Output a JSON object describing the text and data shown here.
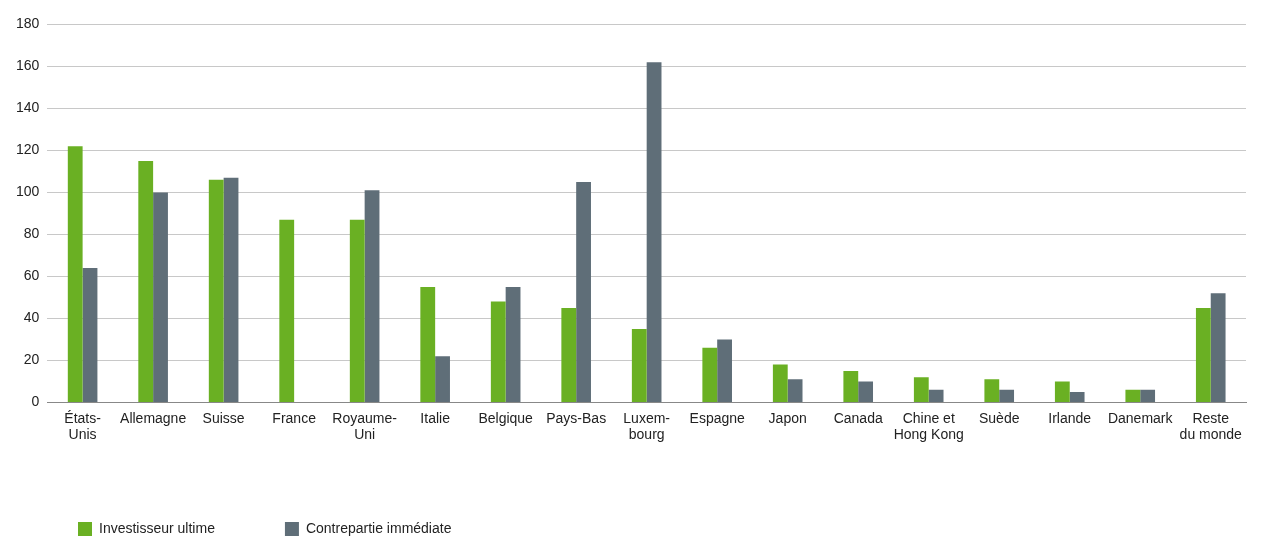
{
  "chart_data": {
    "type": "bar",
    "categories": [
      "États-\nUnis",
      "Allemagne",
      "Suisse",
      "France",
      "Royaume-\nUni",
      "Italie",
      "Belgique",
      "Pays-Bas",
      "Luxem-\nbourg",
      "Espagne",
      "Japon",
      "Canada",
      "Chine et\nHong Kong",
      "Suède",
      "Irlande",
      "Danemark",
      "Reste\ndu monde"
    ],
    "series": [
      {
        "name": "Investisseur ultime",
        "color": "#6ab023",
        "values": [
          122,
          115,
          106,
          87,
          87,
          55,
          48,
          45,
          35,
          26,
          18,
          15,
          12,
          11,
          10,
          6,
          45
        ]
      },
      {
        "name": "Contrepartie immédiate",
        "color": "#5f6e78",
        "values": [
          64,
          100,
          107,
          null,
          101,
          22,
          55,
          105,
          162,
          30,
          11,
          10,
          6,
          6,
          5,
          6,
          52
        ]
      }
    ],
    "ylim": [
      0,
      180
    ],
    "yticks": [
      0,
      20,
      40,
      60,
      80,
      100,
      120,
      140,
      160,
      180
    ],
    "grid": "y",
    "legend": "bottom left"
  }
}
